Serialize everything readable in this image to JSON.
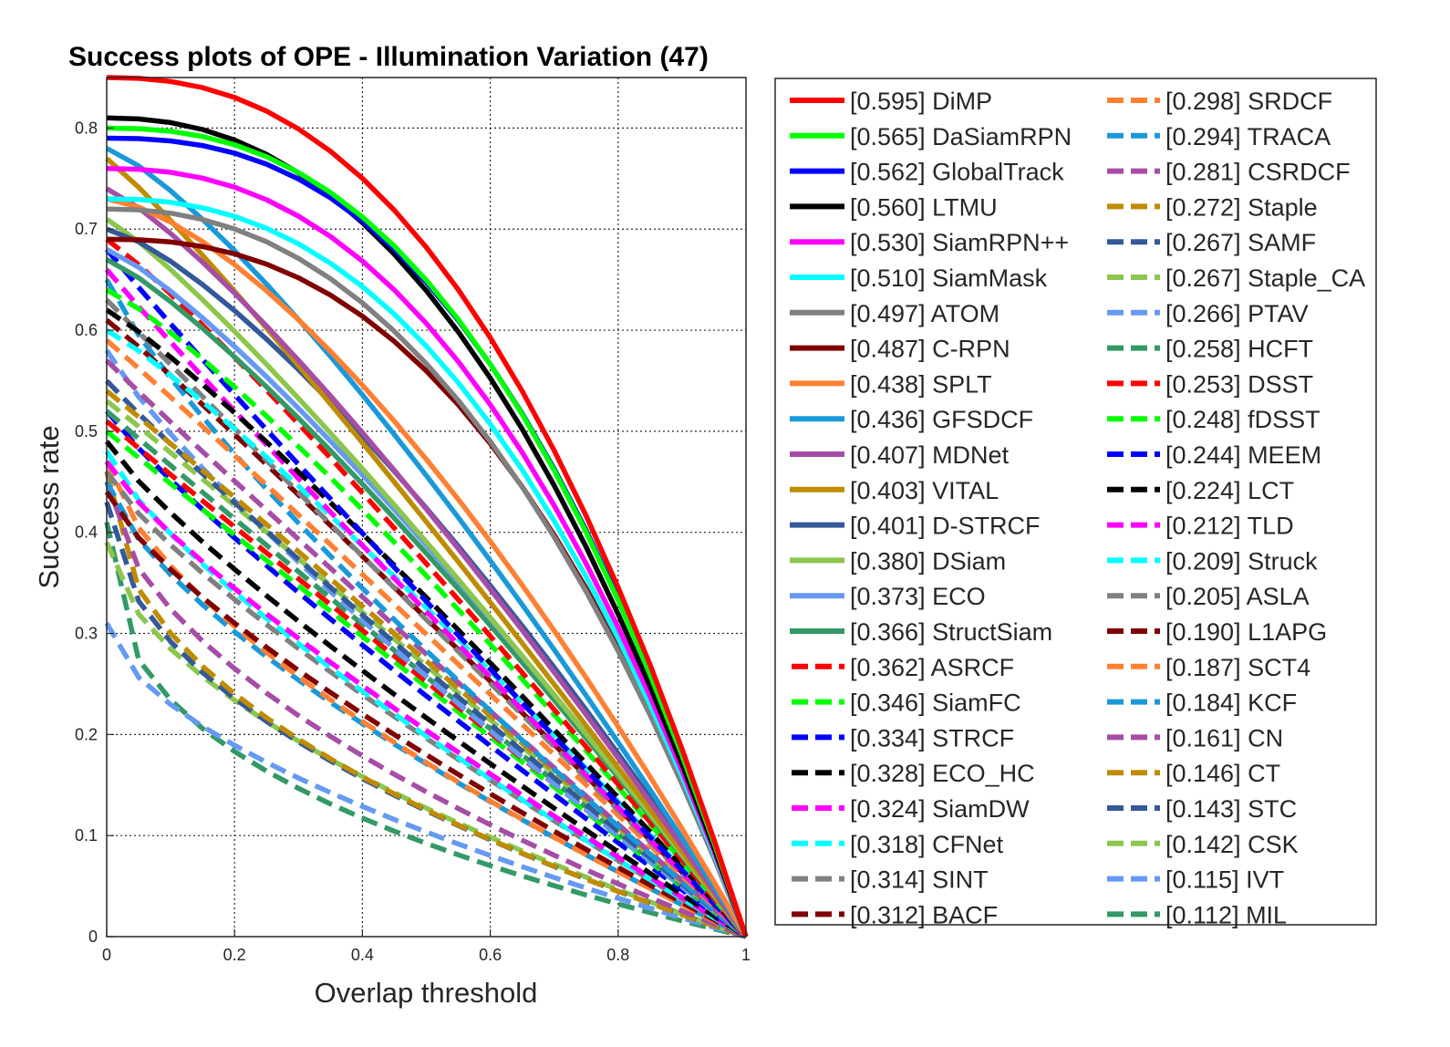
{
  "chart_data": {
    "type": "line",
    "title": "Success plots of OPE - Illumination Variation (47)",
    "xlabel": "Overlap threshold",
    "ylabel": "Success rate",
    "xlim": [
      0,
      1
    ],
    "ylim": [
      0,
      0.85
    ],
    "xticks": [
      0,
      0.2,
      0.4,
      0.6,
      0.8,
      1
    ],
    "xtick_labels": [
      "0",
      "0.2",
      "0.4",
      "0.6",
      "0.8",
      "1"
    ],
    "yticks": [
      0,
      0.1,
      0.2,
      0.3,
      0.4,
      0.5,
      0.6,
      0.7,
      0.8
    ],
    "ytick_labels": [
      "0",
      "0.1",
      "0.2",
      "0.3",
      "0.4",
      "0.5",
      "0.6",
      "0.7",
      "0.8"
    ],
    "grid": true,
    "legend_position": "right",
    "legend_columns": 2,
    "x": [
      0,
      0.05,
      0.1,
      0.15,
      0.2,
      0.25,
      0.3,
      0.35,
      0.4,
      0.45,
      0.5,
      0.55,
      0.6,
      0.65,
      0.7,
      0.75,
      0.8,
      0.85,
      0.9,
      0.95,
      1
    ],
    "series": [
      {
        "name": "[0.595] DiMP",
        "color": "#ff0000",
        "dash": false,
        "auc": 0.595,
        "y0": 0.85
      },
      {
        "name": "[0.565] DaSiamRPN",
        "color": "#00ff00",
        "dash": false,
        "auc": 0.565,
        "y0": 0.8
      },
      {
        "name": "[0.562] GlobalTrack",
        "color": "#0000ff",
        "dash": false,
        "auc": 0.562,
        "y0": 0.79
      },
      {
        "name": "[0.560] LTMU",
        "color": "#000000",
        "dash": false,
        "auc": 0.56,
        "y0": 0.81
      },
      {
        "name": "[0.530] SiamRPN++",
        "color": "#ff00ff",
        "dash": false,
        "auc": 0.53,
        "y0": 0.76
      },
      {
        "name": "[0.510] SiamMask",
        "color": "#00ffff",
        "dash": false,
        "auc": 0.51,
        "y0": 0.73
      },
      {
        "name": "[0.497] ATOM",
        "color": "#808080",
        "dash": false,
        "auc": 0.497,
        "y0": 0.72
      },
      {
        "name": "[0.487] C-RPN",
        "color": "#800000",
        "dash": false,
        "auc": 0.487,
        "y0": 0.69
      },
      {
        "name": "[0.438] SPLT",
        "color": "#ff8033",
        "dash": false,
        "auc": 0.438,
        "y0": 0.73
      },
      {
        "name": "[0.436] GFSDCF",
        "color": "#1a99d9",
        "dash": false,
        "auc": 0.436,
        "y0": 0.78
      },
      {
        "name": "[0.407] MDNet",
        "color": "#a64da6",
        "dash": false,
        "auc": 0.407,
        "y0": 0.74
      },
      {
        "name": "[0.403] VITAL",
        "color": "#bf8c00",
        "dash": false,
        "auc": 0.403,
        "y0": 0.77
      },
      {
        "name": "[0.401] D-STRCF",
        "color": "#335999",
        "dash": false,
        "auc": 0.401,
        "y0": 0.7
      },
      {
        "name": "[0.380] DSiam",
        "color": "#8cc64d",
        "dash": false,
        "auc": 0.38,
        "y0": 0.71
      },
      {
        "name": "[0.373] ECO",
        "color": "#6699f2",
        "dash": false,
        "auc": 0.373,
        "y0": 0.68
      },
      {
        "name": "[0.366] StructSiam",
        "color": "#339966",
        "dash": false,
        "auc": 0.366,
        "y0": 0.67
      },
      {
        "name": "[0.362] ASRCF",
        "color": "#ff0000",
        "dash": true,
        "auc": 0.362,
        "y0": 0.69
      },
      {
        "name": "[0.346] SiamFC",
        "color": "#00ff00",
        "dash": true,
        "auc": 0.346,
        "y0": 0.64
      },
      {
        "name": "[0.334] STRCF",
        "color": "#0000ff",
        "dash": true,
        "auc": 0.334,
        "y0": 0.68
      },
      {
        "name": "[0.328] ECO_HC",
        "color": "#000000",
        "dash": true,
        "auc": 0.328,
        "y0": 0.62
      },
      {
        "name": "[0.324] SiamDW",
        "color": "#ff00ff",
        "dash": true,
        "auc": 0.324,
        "y0": 0.66
      },
      {
        "name": "[0.318] CFNet",
        "color": "#00ffff",
        "dash": true,
        "auc": 0.318,
        "y0": 0.6
      },
      {
        "name": "[0.314] SINT",
        "color": "#808080",
        "dash": true,
        "auc": 0.314,
        "y0": 0.63
      },
      {
        "name": "[0.312] BACF",
        "color": "#800000",
        "dash": true,
        "auc": 0.312,
        "y0": 0.61
      },
      {
        "name": "[0.298] SRDCF",
        "color": "#ff8033",
        "dash": true,
        "auc": 0.298,
        "y0": 0.59
      },
      {
        "name": "[0.294] TRACA",
        "color": "#1a99d9",
        "dash": true,
        "auc": 0.294,
        "y0": 0.65
      },
      {
        "name": "[0.281] CSRDCF",
        "color": "#a64da6",
        "dash": true,
        "auc": 0.281,
        "y0": 0.57
      },
      {
        "name": "[0.272] Staple",
        "color": "#bf8c00",
        "dash": true,
        "auc": 0.272,
        "y0": 0.54
      },
      {
        "name": "[0.267] SAMF",
        "color": "#335999",
        "dash": true,
        "auc": 0.267,
        "y0": 0.55
      },
      {
        "name": "[0.267] Staple_CA",
        "color": "#8cc64d",
        "dash": true,
        "auc": 0.267,
        "y0": 0.53
      },
      {
        "name": "[0.266] PTAV",
        "color": "#6699f2",
        "dash": true,
        "auc": 0.266,
        "y0": 0.58
      },
      {
        "name": "[0.258] HCFT",
        "color": "#339966",
        "dash": true,
        "auc": 0.258,
        "y0": 0.52
      },
      {
        "name": "[0.253] DSST",
        "color": "#ff0000",
        "dash": true,
        "auc": 0.253,
        "y0": 0.51
      },
      {
        "name": "[0.248] fDSST",
        "color": "#00ff00",
        "dash": true,
        "auc": 0.248,
        "y0": 0.5
      },
      {
        "name": "[0.244] MEEM",
        "color": "#0000ff",
        "dash": true,
        "auc": 0.244,
        "y0": 0.52
      },
      {
        "name": "[0.224] LCT",
        "color": "#000000",
        "dash": true,
        "auc": 0.224,
        "y0": 0.49
      },
      {
        "name": "[0.212] TLD",
        "color": "#ff00ff",
        "dash": true,
        "auc": 0.212,
        "y0": 0.47
      },
      {
        "name": "[0.209] Struck",
        "color": "#00ffff",
        "dash": true,
        "auc": 0.209,
        "y0": 0.48
      },
      {
        "name": "[0.205] ASLA",
        "color": "#808080",
        "dash": true,
        "auc": 0.205,
        "y0": 0.46
      },
      {
        "name": "[0.190] L1APG",
        "color": "#800000",
        "dash": true,
        "auc": 0.19,
        "y0": 0.44
      },
      {
        "name": "[0.187] SCT4",
        "color": "#ff8033",
        "dash": true,
        "auc": 0.187,
        "y0": 0.47
      },
      {
        "name": "[0.184] KCF",
        "color": "#1a99d9",
        "dash": true,
        "auc": 0.184,
        "y0": 0.45
      },
      {
        "name": "[0.161] CN",
        "color": "#a64da6",
        "dash": true,
        "auc": 0.161,
        "y0": 0.45
      },
      {
        "name": "[0.146] CT",
        "color": "#bf8c00",
        "dash": true,
        "auc": 0.146,
        "y0": 0.46
      },
      {
        "name": "[0.143] STC",
        "color": "#335999",
        "dash": true,
        "auc": 0.143,
        "y0": 0.43
      },
      {
        "name": "[0.142] CSK",
        "color": "#8cc64d",
        "dash": true,
        "auc": 0.142,
        "y0": 0.39
      },
      {
        "name": "[0.115] IVT",
        "color": "#6699f2",
        "dash": true,
        "auc": 0.115,
        "y0": 0.31
      },
      {
        "name": "[0.112] MIL",
        "color": "#339966",
        "dash": true,
        "auc": 0.112,
        "y0": 0.41
      }
    ]
  }
}
